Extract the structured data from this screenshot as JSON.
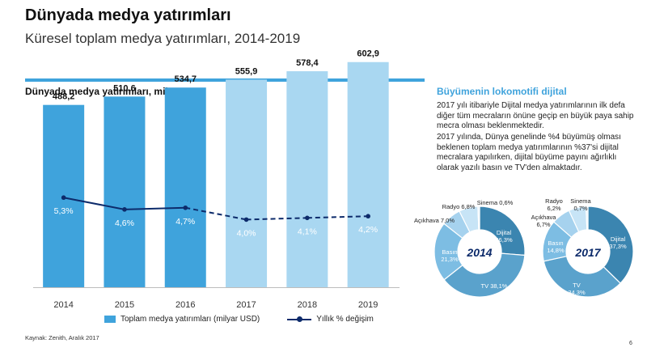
{
  "header": {
    "title": "Dünyada medya yatırımları",
    "subtitle": "Küresel toplam medya yatırımları, 2014-2019"
  },
  "chart_title": "Dünyada medya yatırımları, milyar USD",
  "side": {
    "title": "Büyümenin lokomotifi dijital",
    "paragraph1": "2017 yılı itibariyle Dijital medya yatırımlarının ilk defa diğer tüm mecraların önüne geçip en büyük paya sahip mecra olması beklenmektedir.",
    "paragraph2": "2017 yılında, Dünya genelinde %4 büyümüş olması beklenen toplam medya yatırımlarının %37'si dijital mecralara yapılırken, dijital büyüme payını ağırlıklı olarak yazılı basın ve TV'den almaktadır."
  },
  "legend": {
    "bars": "Toplam medya yatırımları (milyar USD)",
    "line": "Yıllık % değişim"
  },
  "source": "Kaynak: Zenith, Aralık 2017",
  "page_number": "6",
  "colors": {
    "bar_actual": "#3fa3dc",
    "bar_forecast": "#a9d7f1",
    "line": "#0d2b6b",
    "accent": "#3fa3dc"
  },
  "chart_data": [
    {
      "type": "bar",
      "categories": [
        "2014",
        "2015",
        "2016",
        "2017",
        "2018",
        "2019"
      ],
      "series": [
        {
          "values": [
            488.2,
            510.6,
            534.7,
            555.9,
            578.4,
            602.9
          ],
          "labels": [
            "488,2",
            "510,6",
            "534,7",
            "555,9",
            "578,4",
            "602,9"
          ],
          "forecast_from": "2017"
        },
        {
          "type": "line",
          "values": [
            5.3,
            4.6,
            4.7,
            4.0,
            4.1,
            4.2
          ],
          "labels": [
            "5,3%",
            "4,6%",
            "4,7%",
            "4,0%",
            "4,1%",
            "4,2%"
          ],
          "dashed_from": "2016"
        }
      ],
      "ylim": [
        0,
        650
      ],
      "line_ylim": [
        0,
        10
      ],
      "grid": false,
      "legend_position": "bottom"
    },
    {
      "type": "pie",
      "center_label": "2014",
      "slices": [
        {
          "name": "Dijital",
          "value": 26.3,
          "label": "26,3%",
          "color": "#3b85b0"
        },
        {
          "name": "TV",
          "value": 38.1,
          "label": "38,1%",
          "color": "#5aa2cc"
        },
        {
          "name": "Basın",
          "value": 21.3,
          "label": "21,3%",
          "color": "#7dbde3"
        },
        {
          "name": "Açıkhava",
          "value": 7.0,
          "label": "7,0%",
          "color": "#a6d2ee"
        },
        {
          "name": "Radyo",
          "value": 6.8,
          "label": "6,8%",
          "color": "#c7e4f6"
        },
        {
          "name": "Sinema",
          "value": 0.6,
          "label": "0,6%",
          "color": "#e3f2fb"
        }
      ]
    },
    {
      "type": "pie",
      "center_label": "2017",
      "slices": [
        {
          "name": "Dijital",
          "value": 37.3,
          "label": "37,3%",
          "color": "#3b85b0"
        },
        {
          "name": "TV",
          "value": 34.3,
          "label": "34,3%",
          "color": "#5aa2cc"
        },
        {
          "name": "Basın",
          "value": 14.8,
          "label": "14,8%",
          "color": "#7dbde3"
        },
        {
          "name": "Açıkhava",
          "value": 6.7,
          "label": "6,7%",
          "color": "#a6d2ee"
        },
        {
          "name": "Radyo",
          "value": 6.2,
          "label": "6,2%",
          "color": "#c7e4f6"
        },
        {
          "name": "Sinema",
          "value": 0.7,
          "label": "0,7%",
          "color": "#e3f2fb"
        }
      ]
    }
  ]
}
